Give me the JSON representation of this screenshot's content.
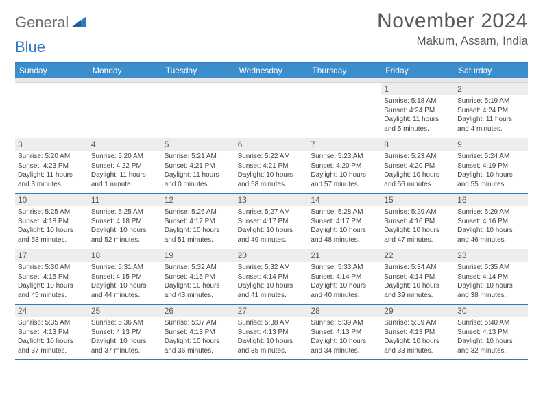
{
  "brand": {
    "general": "General",
    "blue": "Blue"
  },
  "title": "November 2024",
  "location": "Makum, Assam, India",
  "colors": {
    "header_blue": "#3c8dcc",
    "border_blue": "#2f78c2",
    "daynum_bg": "#ededed",
    "spacer_bg": "#e8e8e8",
    "text_gray": "#5a5a5a"
  },
  "weekdays": [
    "Sunday",
    "Monday",
    "Tuesday",
    "Wednesday",
    "Thursday",
    "Friday",
    "Saturday"
  ],
  "weeks": [
    [
      null,
      null,
      null,
      null,
      null,
      {
        "n": "1",
        "sr": "Sunrise: 5:18 AM",
        "ss": "Sunset: 4:24 PM",
        "d1": "Daylight: 11 hours",
        "d2": "and 5 minutes."
      },
      {
        "n": "2",
        "sr": "Sunrise: 5:19 AM",
        "ss": "Sunset: 4:24 PM",
        "d1": "Daylight: 11 hours",
        "d2": "and 4 minutes."
      }
    ],
    [
      {
        "n": "3",
        "sr": "Sunrise: 5:20 AM",
        "ss": "Sunset: 4:23 PM",
        "d1": "Daylight: 11 hours",
        "d2": "and 3 minutes."
      },
      {
        "n": "4",
        "sr": "Sunrise: 5:20 AM",
        "ss": "Sunset: 4:22 PM",
        "d1": "Daylight: 11 hours",
        "d2": "and 1 minute."
      },
      {
        "n": "5",
        "sr": "Sunrise: 5:21 AM",
        "ss": "Sunset: 4:21 PM",
        "d1": "Daylight: 11 hours",
        "d2": "and 0 minutes."
      },
      {
        "n": "6",
        "sr": "Sunrise: 5:22 AM",
        "ss": "Sunset: 4:21 PM",
        "d1": "Daylight: 10 hours",
        "d2": "and 58 minutes."
      },
      {
        "n": "7",
        "sr": "Sunrise: 5:23 AM",
        "ss": "Sunset: 4:20 PM",
        "d1": "Daylight: 10 hours",
        "d2": "and 57 minutes."
      },
      {
        "n": "8",
        "sr": "Sunrise: 5:23 AM",
        "ss": "Sunset: 4:20 PM",
        "d1": "Daylight: 10 hours",
        "d2": "and 56 minutes."
      },
      {
        "n": "9",
        "sr": "Sunrise: 5:24 AM",
        "ss": "Sunset: 4:19 PM",
        "d1": "Daylight: 10 hours",
        "d2": "and 55 minutes."
      }
    ],
    [
      {
        "n": "10",
        "sr": "Sunrise: 5:25 AM",
        "ss": "Sunset: 4:18 PM",
        "d1": "Daylight: 10 hours",
        "d2": "and 53 minutes."
      },
      {
        "n": "11",
        "sr": "Sunrise: 5:25 AM",
        "ss": "Sunset: 4:18 PM",
        "d1": "Daylight: 10 hours",
        "d2": "and 52 minutes."
      },
      {
        "n": "12",
        "sr": "Sunrise: 5:26 AM",
        "ss": "Sunset: 4:17 PM",
        "d1": "Daylight: 10 hours",
        "d2": "and 51 minutes."
      },
      {
        "n": "13",
        "sr": "Sunrise: 5:27 AM",
        "ss": "Sunset: 4:17 PM",
        "d1": "Daylight: 10 hours",
        "d2": "and 49 minutes."
      },
      {
        "n": "14",
        "sr": "Sunrise: 5:28 AM",
        "ss": "Sunset: 4:17 PM",
        "d1": "Daylight: 10 hours",
        "d2": "and 48 minutes."
      },
      {
        "n": "15",
        "sr": "Sunrise: 5:29 AM",
        "ss": "Sunset: 4:16 PM",
        "d1": "Daylight: 10 hours",
        "d2": "and 47 minutes."
      },
      {
        "n": "16",
        "sr": "Sunrise: 5:29 AM",
        "ss": "Sunset: 4:16 PM",
        "d1": "Daylight: 10 hours",
        "d2": "and 46 minutes."
      }
    ],
    [
      {
        "n": "17",
        "sr": "Sunrise: 5:30 AM",
        "ss": "Sunset: 4:15 PM",
        "d1": "Daylight: 10 hours",
        "d2": "and 45 minutes."
      },
      {
        "n": "18",
        "sr": "Sunrise: 5:31 AM",
        "ss": "Sunset: 4:15 PM",
        "d1": "Daylight: 10 hours",
        "d2": "and 44 minutes."
      },
      {
        "n": "19",
        "sr": "Sunrise: 5:32 AM",
        "ss": "Sunset: 4:15 PM",
        "d1": "Daylight: 10 hours",
        "d2": "and 43 minutes."
      },
      {
        "n": "20",
        "sr": "Sunrise: 5:32 AM",
        "ss": "Sunset: 4:14 PM",
        "d1": "Daylight: 10 hours",
        "d2": "and 41 minutes."
      },
      {
        "n": "21",
        "sr": "Sunrise: 5:33 AM",
        "ss": "Sunset: 4:14 PM",
        "d1": "Daylight: 10 hours",
        "d2": "and 40 minutes."
      },
      {
        "n": "22",
        "sr": "Sunrise: 5:34 AM",
        "ss": "Sunset: 4:14 PM",
        "d1": "Daylight: 10 hours",
        "d2": "and 39 minutes."
      },
      {
        "n": "23",
        "sr": "Sunrise: 5:35 AM",
        "ss": "Sunset: 4:14 PM",
        "d1": "Daylight: 10 hours",
        "d2": "and 38 minutes."
      }
    ],
    [
      {
        "n": "24",
        "sr": "Sunrise: 5:35 AM",
        "ss": "Sunset: 4:13 PM",
        "d1": "Daylight: 10 hours",
        "d2": "and 37 minutes."
      },
      {
        "n": "25",
        "sr": "Sunrise: 5:36 AM",
        "ss": "Sunset: 4:13 PM",
        "d1": "Daylight: 10 hours",
        "d2": "and 37 minutes."
      },
      {
        "n": "26",
        "sr": "Sunrise: 5:37 AM",
        "ss": "Sunset: 4:13 PM",
        "d1": "Daylight: 10 hours",
        "d2": "and 36 minutes."
      },
      {
        "n": "27",
        "sr": "Sunrise: 5:38 AM",
        "ss": "Sunset: 4:13 PM",
        "d1": "Daylight: 10 hours",
        "d2": "and 35 minutes."
      },
      {
        "n": "28",
        "sr": "Sunrise: 5:39 AM",
        "ss": "Sunset: 4:13 PM",
        "d1": "Daylight: 10 hours",
        "d2": "and 34 minutes."
      },
      {
        "n": "29",
        "sr": "Sunrise: 5:39 AM",
        "ss": "Sunset: 4:13 PM",
        "d1": "Daylight: 10 hours",
        "d2": "and 33 minutes."
      },
      {
        "n": "30",
        "sr": "Sunrise: 5:40 AM",
        "ss": "Sunset: 4:13 PM",
        "d1": "Daylight: 10 hours",
        "d2": "and 32 minutes."
      }
    ]
  ]
}
